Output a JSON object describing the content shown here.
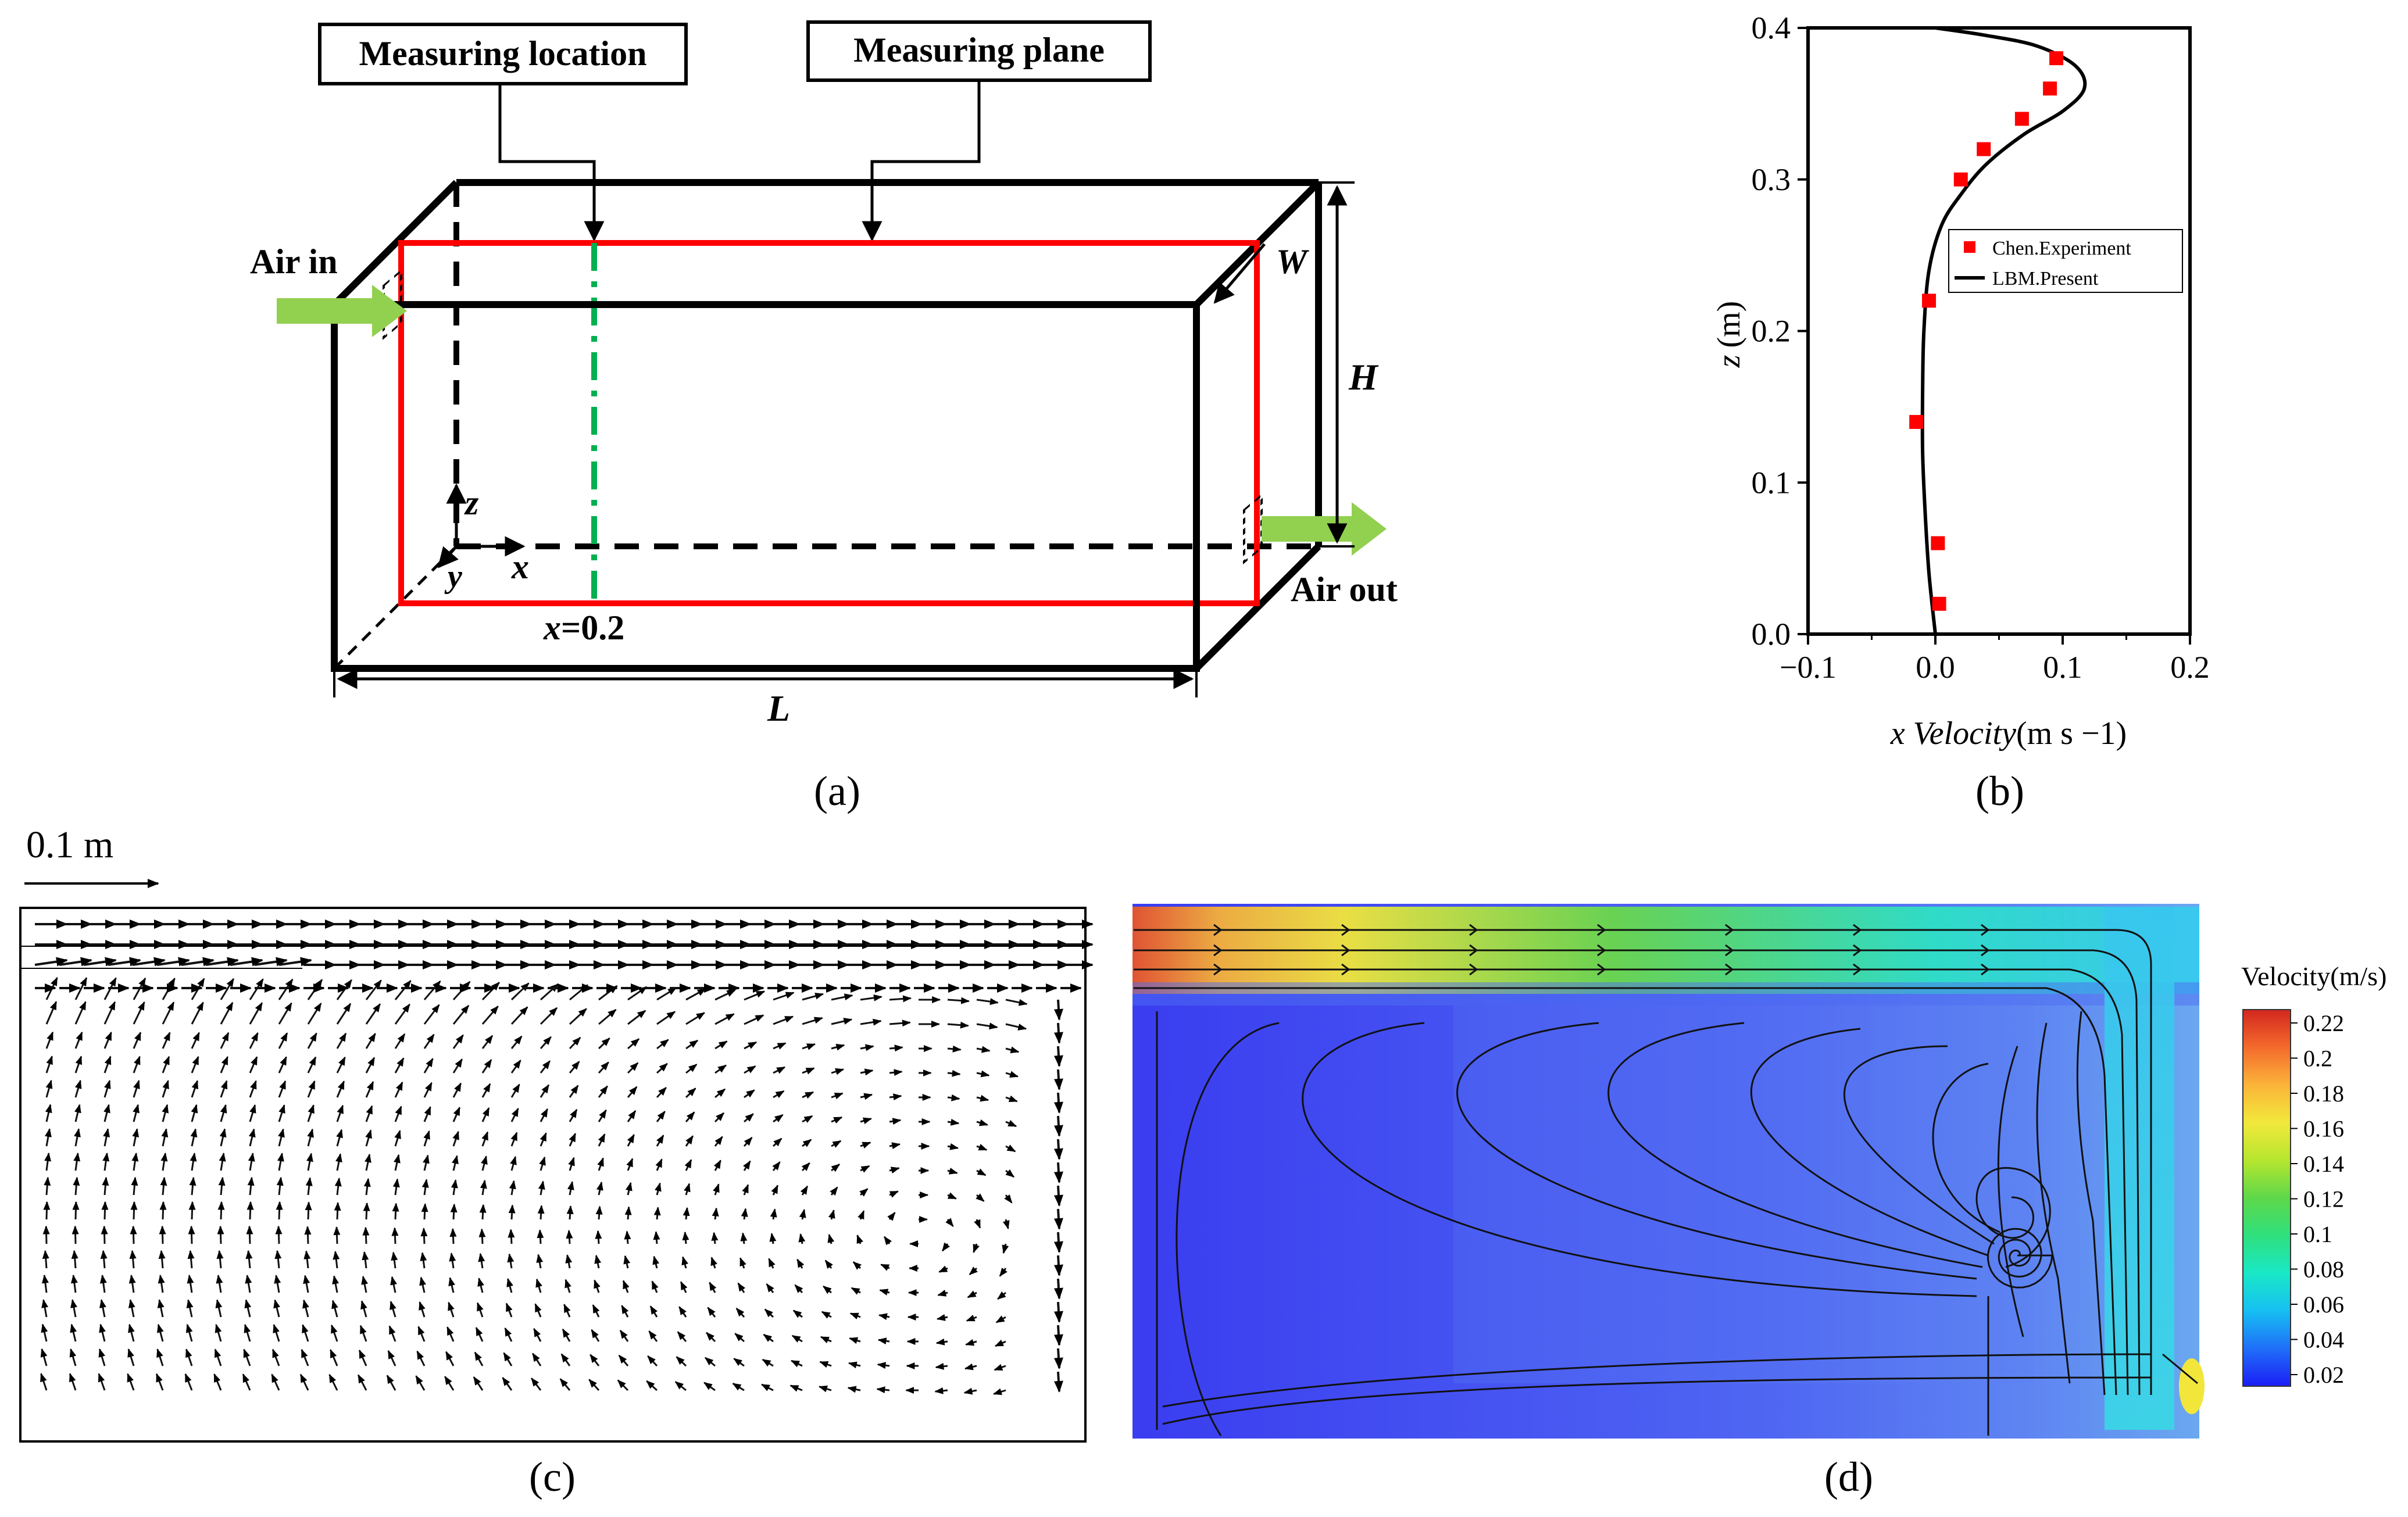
{
  "panel_a": {
    "caption": "(a)",
    "label_location": "Measuring location",
    "label_plane": "Measuring plane",
    "air_in": "Air in",
    "air_out": "Air out",
    "dim_L": "L",
    "dim_W": "W",
    "dim_H": "H",
    "axis_x": "x",
    "axis_y": "y",
    "axis_z": "z",
    "x_mark_var": "x",
    "x_mark_val": "=0.2",
    "colors": {
      "box": "#000000",
      "plane": "#ff0000",
      "line": "#00b050",
      "arrow": "#92d050"
    }
  },
  "panel_b": {
    "caption": "(b)",
    "chart_data": {
      "type": "line",
      "title": "",
      "xlabel_var": "x Velocity",
      "xlabel_unit": "(m s −1)",
      "ylabel_var": "z",
      "ylabel_unit": "(m)",
      "xlim": [
        -0.1,
        0.2
      ],
      "ylim": [
        0.0,
        0.4
      ],
      "x_ticks": [
        "−0.1",
        "0.0",
        "0.1",
        "0.2"
      ],
      "y_ticks": [
        "0.0",
        "0.1",
        "0.2",
        "0.3",
        "0.4"
      ],
      "legend_position": "middle-right",
      "series": [
        {
          "name": "Chen.Experiment",
          "kind": "scatter",
          "color": "#ff0000",
          "points": [
            [
              0.003,
              0.02
            ],
            [
              0.002,
              0.06
            ],
            [
              -0.015,
              0.14
            ],
            [
              -0.005,
              0.22
            ],
            [
              0.02,
              0.3
            ],
            [
              0.038,
              0.32
            ],
            [
              0.068,
              0.34
            ],
            [
              0.09,
              0.36
            ],
            [
              0.095,
              0.38
            ]
          ]
        },
        {
          "name": "LBM.Present",
          "kind": "line",
          "color": "#000000",
          "points": [
            [
              0.0,
              0.0
            ],
            [
              -0.005,
              0.04
            ],
            [
              -0.008,
              0.08
            ],
            [
              -0.01,
              0.12
            ],
            [
              -0.01,
              0.16
            ],
            [
              -0.009,
              0.2
            ],
            [
              -0.005,
              0.24
            ],
            [
              0.005,
              0.27
            ],
            [
              0.02,
              0.29
            ],
            [
              0.04,
              0.31
            ],
            [
              0.07,
              0.33
            ],
            [
              0.1,
              0.345
            ],
            [
              0.117,
              0.36
            ],
            [
              0.11,
              0.375
            ],
            [
              0.08,
              0.388
            ],
            [
              0.04,
              0.395
            ],
            [
              0.0,
              0.4
            ]
          ]
        }
      ]
    }
  },
  "panel_c": {
    "caption": "(c)",
    "scale_label": "0.1 m"
  },
  "panel_d": {
    "caption": "(d)",
    "colorbar_title": "Velocity(m/s)",
    "colorbar_ticks": [
      "0.22",
      "0.2",
      "0.18",
      "0.16",
      "0.14",
      "0.12",
      "0.1",
      "0.08",
      "0.06",
      "0.04",
      "0.02"
    ],
    "colorbar_colors": [
      "#1c1ef5",
      "#1f6ff8",
      "#16bff2",
      "#19e8c7",
      "#2fe07d",
      "#5ed84a",
      "#b6e62f",
      "#f2e83b",
      "#fbb43a",
      "#f46a2c",
      "#d2271f"
    ]
  }
}
